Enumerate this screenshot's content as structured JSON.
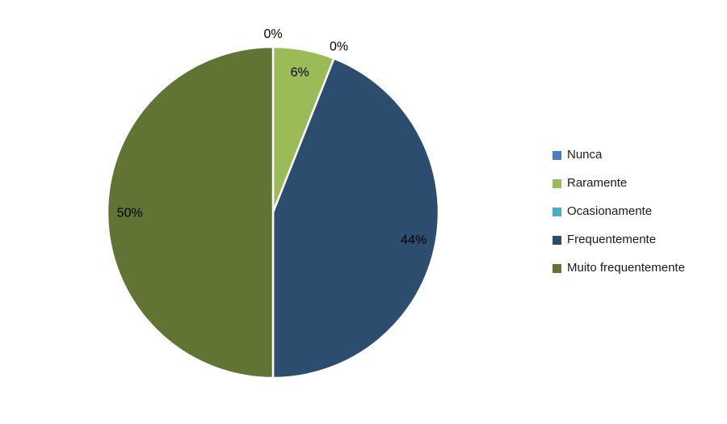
{
  "chart_data": {
    "type": "pie",
    "title": "",
    "categories": [
      "Nunca",
      "Raramente",
      "Ocasionamente",
      "Frequentemente",
      "Muito frequentemente"
    ],
    "values": [
      0,
      6,
      0,
      44,
      50
    ],
    "data_labels": [
      "0%",
      "6%",
      "0%",
      "44%",
      "50%"
    ],
    "colors": [
      "#4A7EBB",
      "#9BBB59",
      "#4BACC6",
      "#2C4D6E",
      "#627434"
    ],
    "start_angle_deg": 0,
    "direction": "clockwise",
    "legend_position": "right",
    "slice_border_color": "#FFFFFF",
    "label_color": "#000000",
    "background_color": "#FFFFFF"
  },
  "legend": {
    "items": [
      {
        "label": "Nunca",
        "color": "#4A7EBB"
      },
      {
        "label": "Raramente",
        "color": "#9BBB59"
      },
      {
        "label": "Ocasionamente",
        "color": "#4BACC6"
      },
      {
        "label": "Frequentemente",
        "color": "#2C4D6E"
      },
      {
        "label": "Muito frequentemente",
        "color": "#627434"
      }
    ]
  }
}
